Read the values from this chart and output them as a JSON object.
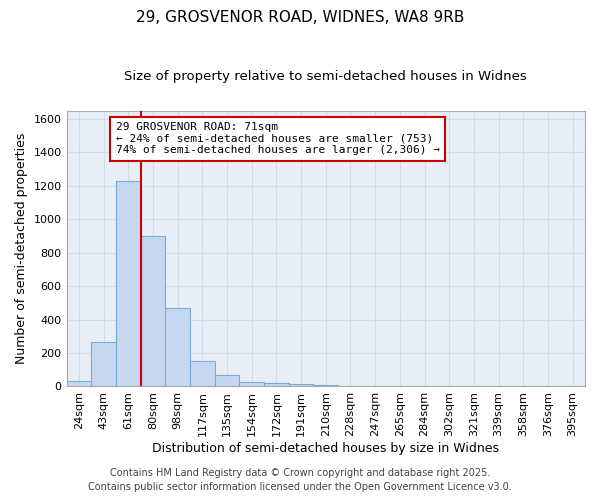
{
  "title_line1": "29, GROSVENOR ROAD, WIDNES, WA8 9RB",
  "title_line2": "Size of property relative to semi-detached houses in Widnes",
  "xlabel": "Distribution of semi-detached houses by size in Widnes",
  "ylabel": "Number of semi-detached properties",
  "categories": [
    "24sqm",
    "43sqm",
    "61sqm",
    "80sqm",
    "98sqm",
    "117sqm",
    "135sqm",
    "154sqm",
    "172sqm",
    "191sqm",
    "210sqm",
    "228sqm",
    "247sqm",
    "265sqm",
    "284sqm",
    "302sqm",
    "321sqm",
    "339sqm",
    "358sqm",
    "376sqm",
    "395sqm"
  ],
  "values": [
    30,
    265,
    1230,
    900,
    470,
    150,
    70,
    25,
    20,
    15,
    10,
    5,
    0,
    0,
    0,
    0,
    0,
    0,
    0,
    0,
    0
  ],
  "bar_color": "#c5d8ef",
  "bar_edge_color": "#7aabd4",
  "vline_x": 2.5,
  "vline_color": "#cc0000",
  "annotation_text": "29 GROSVENOR ROAD: 71sqm\n← 24% of semi-detached houses are smaller (753)\n74% of semi-detached houses are larger (2,306) →",
  "annotation_box_facecolor": "#ffffff",
  "annotation_box_edgecolor": "#cc0000",
  "ylim": [
    0,
    1650
  ],
  "yticks": [
    0,
    200,
    400,
    600,
    800,
    1000,
    1200,
    1400,
    1600
  ],
  "grid_color": "#d0dce8",
  "bg_color": "#ffffff",
  "plot_bg_color": "#e8eef8",
  "footer_line1": "Contains HM Land Registry data © Crown copyright and database right 2025.",
  "footer_line2": "Contains public sector information licensed under the Open Government Licence v3.0.",
  "title_fontsize": 11,
  "subtitle_fontsize": 9.5,
  "axis_label_fontsize": 9,
  "tick_fontsize": 8,
  "annotation_fontsize": 8,
  "footer_fontsize": 7
}
